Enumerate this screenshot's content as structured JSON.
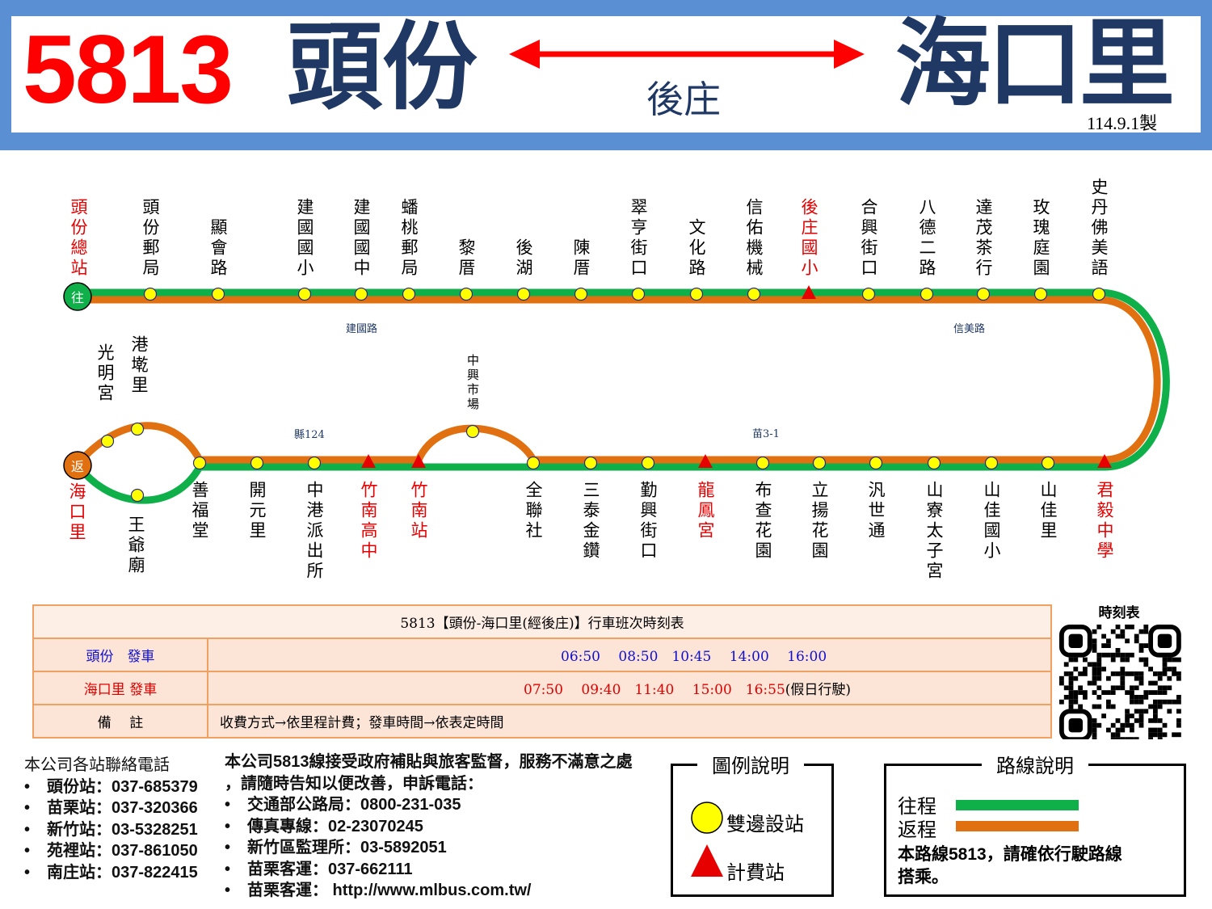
{
  "header": {
    "route_number": "5813",
    "origin": "頭份",
    "destination": "海口里",
    "via": "後庄",
    "made_date": "114.9.1製"
  },
  "colors": {
    "outbound": "#0fb04a",
    "return": "#e07010",
    "stop": "#ffff00",
    "fare_stage": "#e60000",
    "header_bg": "#5b8fd3"
  },
  "route_map": {
    "top_stops": [
      {
        "name": "頭份總站",
        "red": true,
        "type": "terminal"
      },
      {
        "name": "頭份郵局"
      },
      {
        "name": "顯會路"
      },
      {
        "name": "建國國小"
      },
      {
        "name": "建國國中"
      },
      {
        "name": "蟠桃郵局"
      },
      {
        "name": "黎厝"
      },
      {
        "name": "後湖"
      },
      {
        "name": "陳厝"
      },
      {
        "name": "翠亨街口"
      },
      {
        "name": "文化路"
      },
      {
        "name": "信佑機械"
      },
      {
        "name": "後庄國小",
        "red": true,
        "type": "fare"
      },
      {
        "name": "合興街口"
      },
      {
        "name": "八德二路"
      },
      {
        "name": "達茂茶行"
      },
      {
        "name": "玫瑰庭園"
      },
      {
        "name": "史丹佛美語"
      }
    ],
    "bottom_stops": [
      {
        "name": "善福堂"
      },
      {
        "name": "開元里"
      },
      {
        "name": "中港派出所"
      },
      {
        "name": "竹南高中",
        "red": true,
        "type": "fare"
      },
      {
        "name": "竹南站",
        "red": true,
        "type": "fare"
      },
      {
        "name": "全聯社"
      },
      {
        "name": "三泰金鑽"
      },
      {
        "name": "勤興街口"
      },
      {
        "name": "龍鳳宮",
        "red": true,
        "type": "fare"
      },
      {
        "name": "布查花園"
      },
      {
        "name": "立揚花園"
      },
      {
        "name": "汎世通"
      },
      {
        "name": "山寮太子宮"
      },
      {
        "name": "山佳國小"
      },
      {
        "name": "山佳里"
      },
      {
        "name": "君毅中學",
        "red": true,
        "type": "fare"
      }
    ],
    "loop_stops": {
      "guangming": "光明宮",
      "gangqian": "港墘里",
      "wangye": "王爺廟",
      "zhongxing": "中興市場",
      "haikou": "海口里"
    },
    "start_badge": "往",
    "end_badge": "返",
    "roads": {
      "jianguo": "建國路",
      "xinmei": "信美路",
      "county124": "縣124",
      "miao31": "苗3-1"
    }
  },
  "timetable": {
    "title": "5813【頭份-海口里(經後庄)】行車班次時刻表",
    "rows": [
      {
        "label": "頭份　發車",
        "times": "06:50　 08:50　10:45　 14:00　 16:00",
        "note": ""
      },
      {
        "label": "海口里 發車",
        "times": "07:50　 09:40　11:40　 15:00　16:55",
        "note": "(假日行駛)"
      },
      {
        "label": "備　 註",
        "value": "收費方式→依里程計費；發車時間→依表定時間"
      }
    ],
    "qr_label": "時刻表"
  },
  "contacts": {
    "title": "本公司各站聯絡電話",
    "items": [
      "頭份站：037-685379",
      "苗栗站：037-320366",
      "新竹站：03-5328251",
      "苑裡站：037-861050",
      "南庄站：037-822415"
    ]
  },
  "complaints": {
    "line1": "本公司5813線接受政府補貼與旅客監督，服務不滿意之處",
    "line2": "，請隨時告知以便改善，申訴電話：",
    "items": [
      "交通部公路局：0800-231-035",
      "傳真專線：02-23070245",
      "新竹區監理所：03-5892051",
      "苗栗客運：037-662111",
      "苗栗客運： http://www.mlbus.com.tw/"
    ]
  },
  "legend": {
    "title": "圖例說明",
    "stop": "雙邊設站",
    "fare": "計費站"
  },
  "route_desc": {
    "title": "路線說明",
    "outbound": "往程",
    "return": "返程",
    "note1": "本路線5813，請確依行駛路線",
    "note2": "搭乘。"
  }
}
